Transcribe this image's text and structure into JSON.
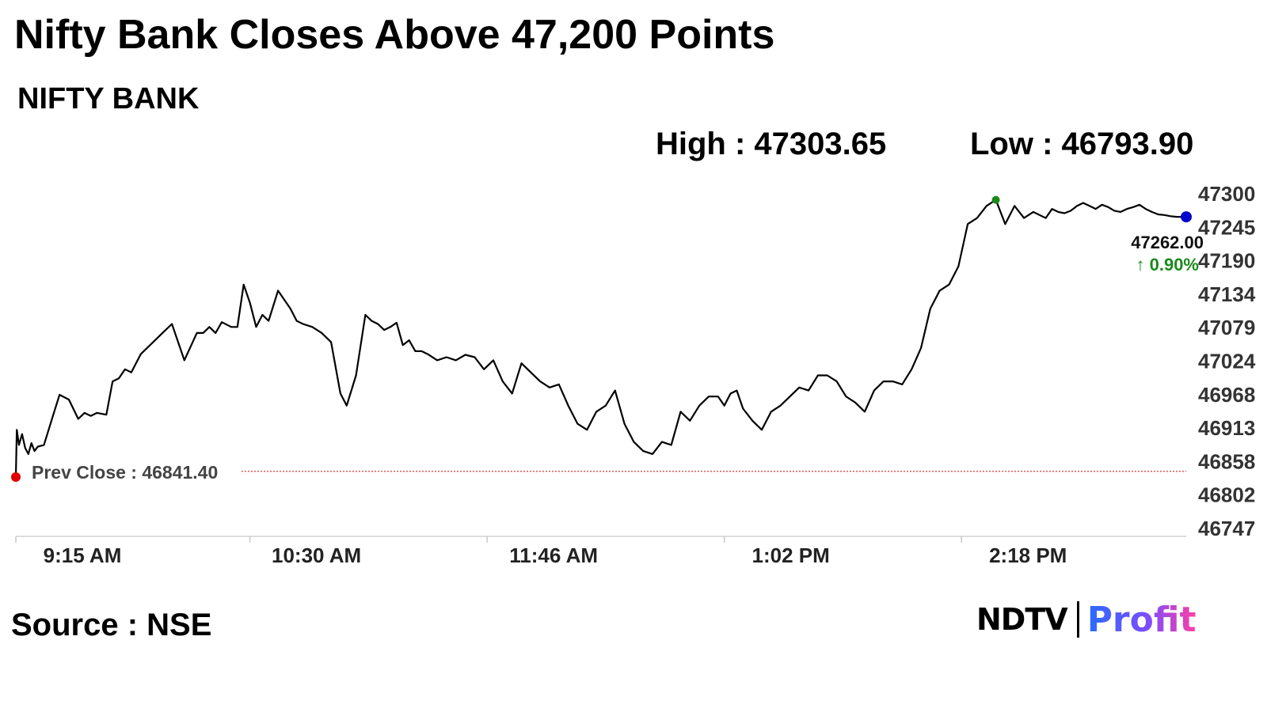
{
  "title": "Nifty Bank Closes Above 47,200 Points",
  "subtitle": "NIFTY BANK",
  "stats": {
    "high": "High : 47303.65",
    "low": "Low : 46793.90"
  },
  "source": "Source : NSE",
  "logo": {
    "left": "NDTV",
    "right": "Profit"
  },
  "colors": {
    "line": "#000000",
    "prev_close": "#d42020",
    "high_dot": "#1a8a1a",
    "low_dot": "#e00000",
    "last_dot": "#0000cc",
    "up": "#1a8a1a"
  },
  "chart_data": {
    "type": "line",
    "title": "NIFTY BANK",
    "ylim": [
      46747,
      47300
    ],
    "y_ticks": [
      "47300",
      "47245",
      "47190",
      "47134",
      "47079",
      "47024",
      "46968",
      "46913",
      "46858",
      "46802",
      "46747"
    ],
    "x_ticks": [
      "9:15 AM",
      "10:30 AM",
      "11:46 AM",
      "1:02 PM",
      "2:18 PM"
    ],
    "x_tick_minutes": [
      0,
      75,
      151,
      227,
      303
    ],
    "session_minutes": 375,
    "prev_close": {
      "label": "Prev Close : 46841.40",
      "value": 46841.4
    },
    "last": {
      "value": 47262.0,
      "label": "47262.00",
      "change": "↑ 0.90%"
    },
    "series": [
      {
        "x": [
          0,
          0.3,
          1,
          2,
          3,
          4,
          5,
          6,
          7,
          9,
          12,
          14,
          17,
          20,
          22,
          24,
          26,
          29,
          31,
          33,
          35,
          37,
          40,
          43,
          47,
          50,
          54,
          58,
          60,
          62,
          64,
          66,
          69,
          71,
          73,
          75,
          77,
          79,
          81,
          84,
          86,
          88,
          90,
          92,
          95,
          98,
          101,
          104,
          106,
          109,
          112,
          114,
          116,
          118,
          120,
          122,
          124,
          126,
          128,
          130,
          132,
          135,
          138,
          141,
          144,
          147,
          150,
          153,
          156,
          159,
          162,
          165,
          168,
          171,
          174,
          177,
          180,
          183,
          186,
          189,
          192,
          195,
          198,
          201,
          204,
          207,
          210,
          213,
          216,
          219,
          222,
          225,
          227,
          229,
          231,
          233,
          236,
          239,
          242,
          245,
          248,
          251,
          254,
          257,
          260,
          263,
          266,
          269,
          272,
          275,
          278,
          281,
          284,
          287,
          290,
          293,
          296,
          299,
          302,
          305,
          308,
          311,
          314,
          317,
          320,
          323,
          326,
          328,
          330,
          332,
          334,
          336,
          338,
          340,
          342,
          344,
          346,
          348,
          350,
          352,
          354,
          356,
          358,
          360,
          362,
          364,
          366,
          368,
          370,
          372,
          375
        ],
        "y": [
          46832,
          46910,
          46885,
          46903,
          46880,
          46870,
          46888,
          46875,
          46882,
          46885,
          46935,
          46968,
          46960,
          46928,
          46938,
          46933,
          46938,
          46935,
          46990,
          46995,
          47010,
          47005,
          47035,
          47050,
          47070,
          47085,
          47025,
          47070,
          47070,
          47080,
          47070,
          47088,
          47080,
          47080,
          47150,
          47120,
          47080,
          47100,
          47090,
          47140,
          47125,
          47110,
          47090,
          47085,
          47080,
          47070,
          47055,
          46970,
          46950,
          47000,
          47100,
          47090,
          47085,
          47075,
          47080,
          47087,
          47050,
          47058,
          47040,
          47040,
          47035,
          47025,
          47030,
          47025,
          47034,
          47030,
          47010,
          47025,
          46990,
          46970,
          47020,
          47005,
          46990,
          46980,
          46985,
          46950,
          46920,
          46910,
          46940,
          46950,
          46975,
          46920,
          46890,
          46875,
          46870,
          46890,
          46885,
          46940,
          46925,
          46950,
          46965,
          46965,
          46950,
          46970,
          46975,
          46945,
          46925,
          46910,
          46940,
          46950,
          46965,
          46980,
          46975,
          47000,
          47000,
          46990,
          46965,
          46955,
          46940,
          46975,
          46990,
          46990,
          46985,
          47010,
          47045,
          47110,
          47140,
          47150,
          47180,
          47250,
          47260,
          47280,
          47290,
          47250,
          47280,
          47260,
          47270,
          47265,
          47260,
          47275,
          47270,
          47268,
          47272,
          47280,
          47285,
          47280,
          47275,
          47282,
          47278,
          47272,
          47270,
          47275,
          47278,
          47282,
          47275,
          47270,
          47266,
          47265,
          47263,
          47262,
          47262
        ]
      }
    ]
  }
}
